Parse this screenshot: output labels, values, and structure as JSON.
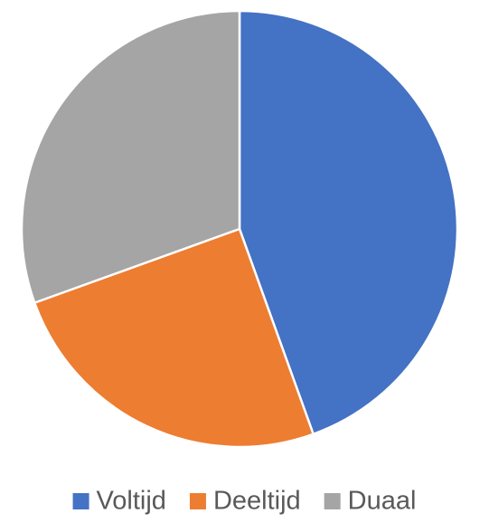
{
  "chart_data": {
    "type": "pie",
    "categories": [
      "Voltijd",
      "Deeltijd",
      "Duaal"
    ],
    "values": [
      44.5,
      25,
      30.5
    ],
    "colors": [
      "#4472c4",
      "#ed7d31",
      "#a5a5a5"
    ],
    "legend": "bottom"
  }
}
